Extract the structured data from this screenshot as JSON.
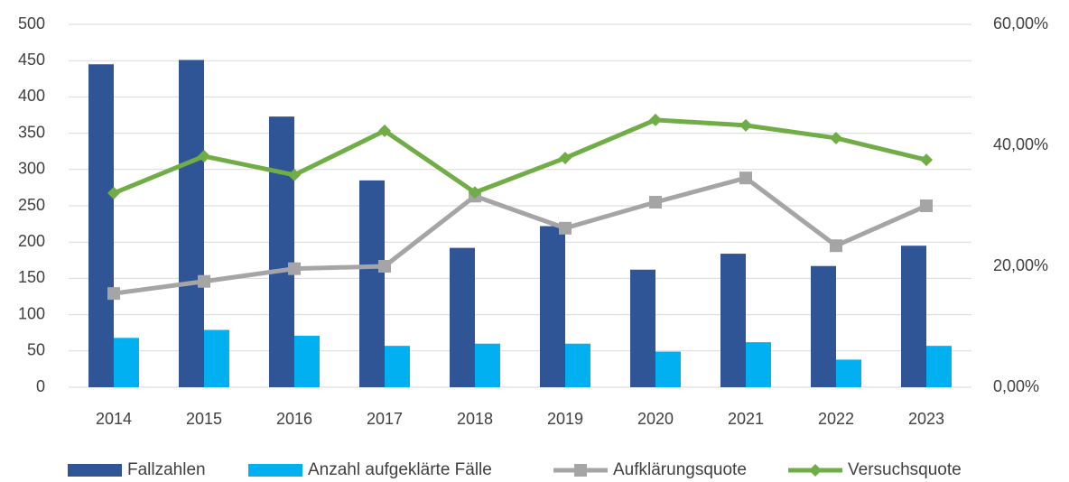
{
  "chart_data": {
    "type": "bar",
    "categories": [
      "2014",
      "2015",
      "2016",
      "2017",
      "2018",
      "2019",
      "2020",
      "2021",
      "2022",
      "2023"
    ],
    "series": [
      {
        "name": "Fallzahlen",
        "type": "bar",
        "color": "#2f5597",
        "values": [
          445,
          451,
          373,
          285,
          192,
          222,
          162,
          184,
          167,
          195
        ]
      },
      {
        "name": "Anzahl aufgeklärte Fälle",
        "type": "bar",
        "color": "#00b0f0",
        "values": [
          68,
          79,
          71,
          57,
          60,
          60,
          49,
          62,
          38,
          57
        ]
      },
      {
        "name": "Aufklärungsquote",
        "type": "line",
        "axis": "y2",
        "marker": "square",
        "color": "#a5a5a5",
        "values": [
          15.5,
          17.5,
          19.6,
          20.0,
          31.6,
          26.3,
          30.6,
          34.6,
          23.4,
          30.0
        ]
      },
      {
        "name": "Versuchsquote",
        "type": "line",
        "axis": "y2",
        "marker": "diamond",
        "color": "#70ad47",
        "values": [
          32.1,
          38.2,
          35.1,
          42.4,
          32.2,
          37.9,
          44.2,
          43.3,
          41.2,
          37.6
        ]
      }
    ],
    "ylim": [
      0,
      500
    ],
    "yticks": [
      0,
      50,
      100,
      150,
      200,
      250,
      300,
      350,
      400,
      450,
      500
    ],
    "y2lim": [
      0,
      60
    ],
    "y2ticks": [
      {
        "value": 0,
        "label": "0,00%"
      },
      {
        "value": 20,
        "label": "20,00%"
      },
      {
        "value": 40,
        "label": "40,00%"
      },
      {
        "value": 60,
        "label": "60,00%"
      }
    ],
    "grid": true,
    "legend": "bottom"
  }
}
